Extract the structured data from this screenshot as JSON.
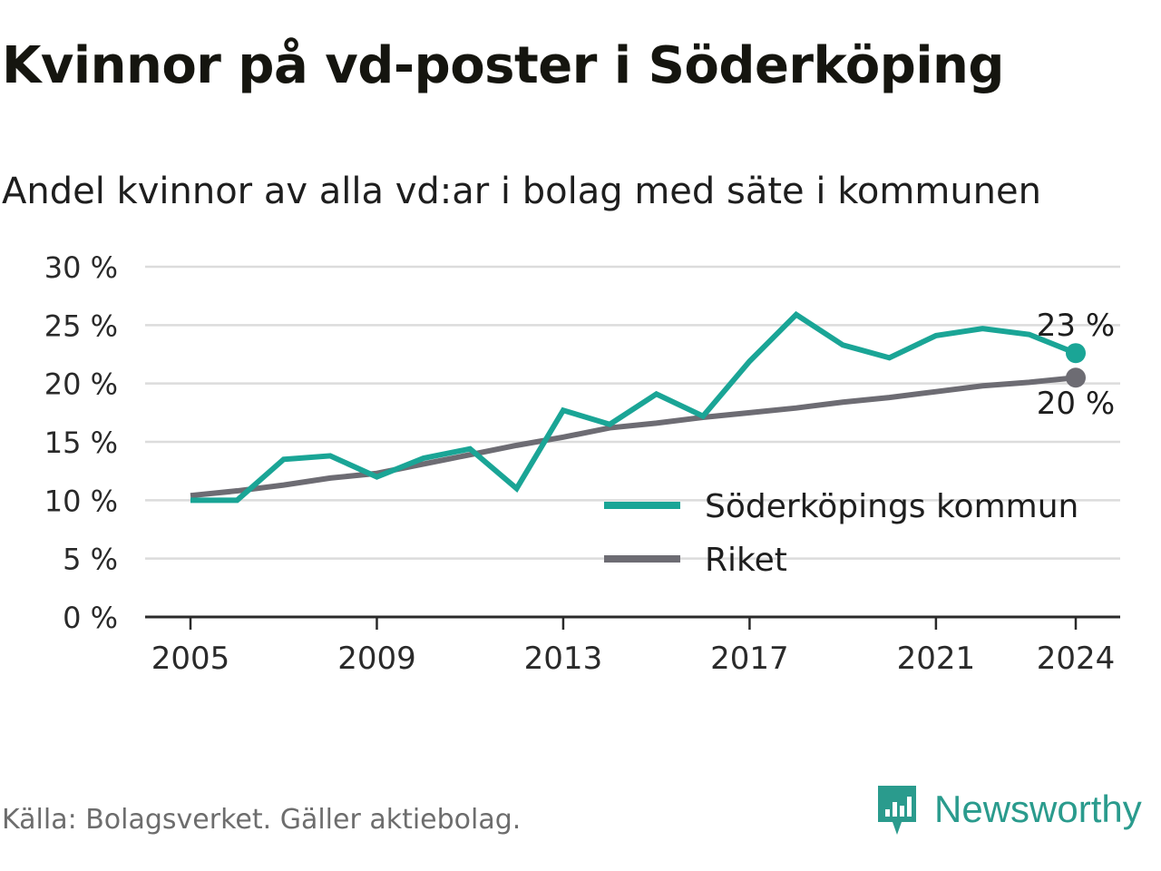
{
  "title": "Kvinnor på vd-poster i Söderköping",
  "subtitle": "Andel kvinnor av alla vd:ar i bolag med säte i kommunen",
  "source": "Källa: Bolagsverket. Gäller aktiebolag.",
  "brand": {
    "name": "Newsworthy",
    "icon": "newsworthy-logo-icon",
    "color": "#2a9b8d"
  },
  "chart_data": {
    "type": "line",
    "x": [
      2005,
      2006,
      2007,
      2008,
      2009,
      2010,
      2011,
      2012,
      2013,
      2014,
      2015,
      2016,
      2017,
      2018,
      2019,
      2020,
      2021,
      2022,
      2023,
      2024
    ],
    "x_ticks": [
      "2005",
      "2009",
      "2013",
      "2017",
      "2021",
      "2024"
    ],
    "y_ticks": [
      "0 %",
      "5 %",
      "10 %",
      "15 %",
      "20 %",
      "25 %",
      "30 %"
    ],
    "ylim": [
      0,
      30
    ],
    "grid": true,
    "legend_position": "bottom-right",
    "series": [
      {
        "name": "Söderköpings kommun",
        "color": "#1aa596",
        "values": [
          10.0,
          10.0,
          13.5,
          13.8,
          12.0,
          13.6,
          14.4,
          11.0,
          17.7,
          16.5,
          19.1,
          17.2,
          21.9,
          25.9,
          23.3,
          22.2,
          24.1,
          24.7,
          24.2,
          22.6
        ],
        "end_label": "23 %"
      },
      {
        "name": "Riket",
        "color": "#6d6c73",
        "values": [
          10.4,
          10.8,
          11.3,
          11.9,
          12.3,
          13.1,
          13.9,
          14.7,
          15.4,
          16.2,
          16.6,
          17.1,
          17.5,
          17.9,
          18.4,
          18.8,
          19.3,
          19.8,
          20.1,
          20.5
        ],
        "end_label": "20 %"
      }
    ]
  }
}
